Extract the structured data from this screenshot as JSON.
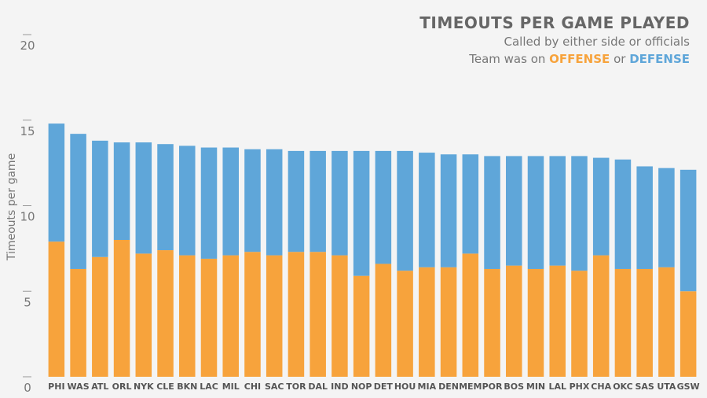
{
  "chart_data": {
    "type": "bar",
    "stacked": true,
    "title": "TIMEOUTS PER GAME PLAYED",
    "subtitle_line1": "Called by either side or officials",
    "subtitle_prefix": "Team was on",
    "subtitle_or": "or",
    "offense_word": "OFFENSE",
    "defense_word": "DEFENSE",
    "ylabel": "Timeouts per game",
    "xlabel": "",
    "ylim": [
      0,
      20
    ],
    "yticks": [
      "0",
      "5",
      "10",
      "15",
      "20"
    ],
    "yticks_values": [
      0,
      5,
      10,
      15,
      20
    ],
    "grid": false,
    "legend": "none (colors explained in subtitle, top-right)",
    "categories": [
      "PHI",
      "WAS",
      "ATL",
      "ORL",
      "NYK",
      "CLE",
      "BKN",
      "LAC",
      "MIL",
      "CHI",
      "SAC",
      "TOR",
      "DAL",
      "IND",
      "NOP",
      "DET",
      "HOU",
      "MIA",
      "DEN",
      "MEM",
      "POR",
      "BOS",
      "MIN",
      "LAL",
      "PHX",
      "CHA",
      "OKC",
      "SAS",
      "UTA",
      "GSW"
    ],
    "series": [
      {
        "name": "OFFENSE",
        "color": "#f7a33c",
        "values": [
          7.9,
          6.3,
          7.0,
          8.0,
          7.2,
          7.4,
          7.1,
          6.9,
          7.1,
          7.3,
          7.1,
          7.3,
          7.3,
          7.1,
          5.9,
          6.6,
          6.2,
          6.4,
          6.4,
          7.2,
          6.3,
          6.5,
          6.3,
          6.5,
          6.2,
          7.1,
          6.3,
          6.3,
          6.4,
          5.0
        ]
      },
      {
        "name": "DEFENSE",
        "color": "#5fa6d9",
        "values": [
          6.9,
          7.9,
          6.8,
          5.7,
          6.5,
          6.2,
          6.4,
          6.5,
          6.3,
          6.0,
          6.2,
          5.9,
          5.9,
          6.1,
          7.3,
          6.6,
          7.0,
          6.7,
          6.6,
          5.8,
          6.6,
          6.4,
          6.6,
          6.4,
          6.7,
          5.7,
          6.4,
          6.0,
          5.8,
          7.1
        ]
      }
    ]
  }
}
